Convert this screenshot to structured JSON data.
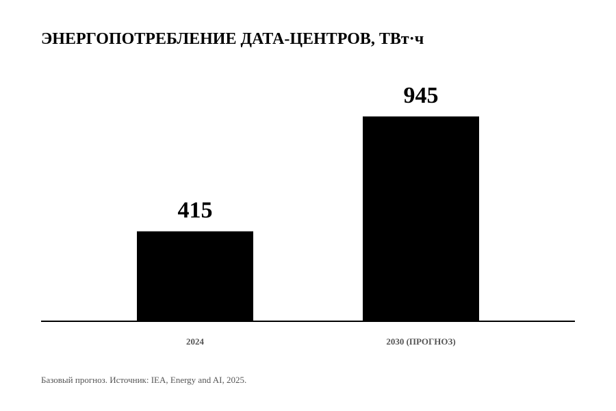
{
  "chart_data": {
    "type": "bar",
    "title": "ЭНЕРГОПОТРЕБЛЕНИЕ ДАТА-ЦЕНТРОВ, ТВт·ч",
    "categories": [
      "2024",
      "2030 (ПРОГНОЗ)"
    ],
    "values": [
      415,
      945
    ],
    "data_labels": [
      "415",
      "945"
    ],
    "xlabel": "",
    "ylabel": "",
    "ylim": [
      0,
      945
    ],
    "grid": false,
    "legend": "none",
    "bar_color": "#000000",
    "axis_color": "#000000",
    "tick_label_color": "#555555"
  },
  "footer": {
    "source": "Базовый прогноз. Источник: IEA, Energy and AI, 2025."
  }
}
